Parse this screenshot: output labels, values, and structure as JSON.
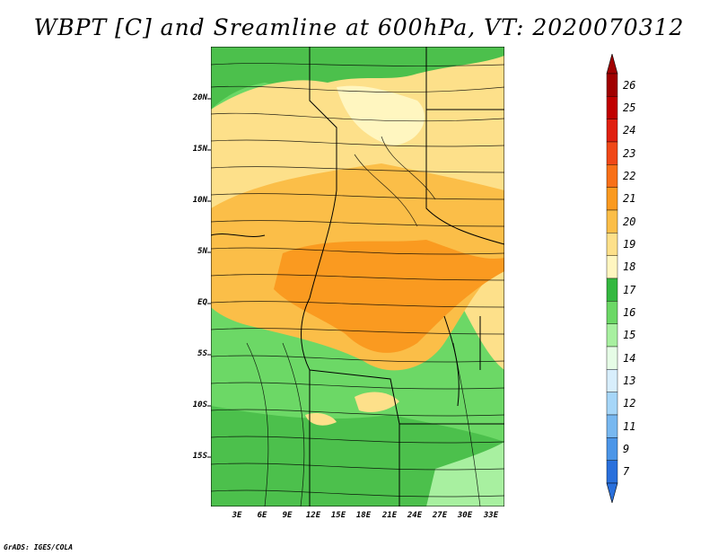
{
  "title": "WBPT [C] and Sreamline at 600hPa, VT: 2020070312",
  "credit": "GrADS: IGES/COLA",
  "map": {
    "lat_labels": [
      "20N",
      "15N",
      "10N",
      "5N",
      "EQ",
      "5S",
      "10S",
      "15S"
    ],
    "lon_labels": [
      "3E",
      "6E",
      "9E",
      "12E",
      "15E",
      "18E",
      "21E",
      "24E",
      "27E",
      "30E",
      "33E"
    ]
  },
  "colorbar": {
    "labels": [
      "26",
      "25",
      "24",
      "23",
      "22",
      "21",
      "20",
      "19",
      "18",
      "17",
      "16",
      "15",
      "14",
      "13",
      "12",
      "11",
      "9",
      "7"
    ],
    "colors": [
      "#a00000",
      "#c00000",
      "#e02010",
      "#f04818",
      "#f87018",
      "#fa9a20",
      "#fbbe48",
      "#fde08a",
      "#fff6c0",
      "#34b840",
      "#6cd866",
      "#a8f0a0",
      "#e6fce6",
      "#d8eefc",
      "#a6d6f8",
      "#78b8f0",
      "#4c96e8",
      "#2a70dc"
    ],
    "top_arrow_color": "#a00000",
    "bottom_arrow_color": "#2a70dc"
  }
}
